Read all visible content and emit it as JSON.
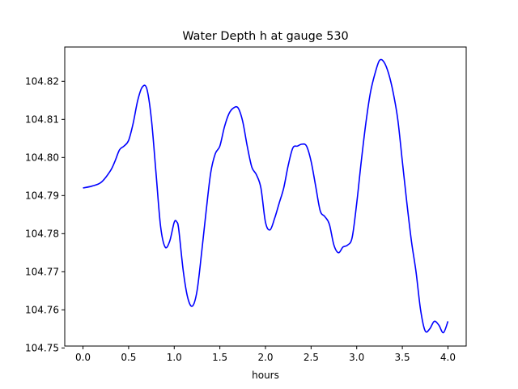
{
  "chart_data": {
    "type": "line",
    "title": "Water Depth h at gauge 530",
    "xlabel": "hours",
    "ylabel": "",
    "xlim": [
      -0.2,
      4.2
    ],
    "ylim": [
      104.7505,
      104.829
    ],
    "grid": false,
    "x_ticks": [
      {
        "value": 0.0,
        "label": "0.0"
      },
      {
        "value": 0.5,
        "label": "0.5"
      },
      {
        "value": 1.0,
        "label": "1.0"
      },
      {
        "value": 1.5,
        "label": "1.5"
      },
      {
        "value": 2.0,
        "label": "2.0"
      },
      {
        "value": 2.5,
        "label": "2.5"
      },
      {
        "value": 3.0,
        "label": "3.0"
      },
      {
        "value": 3.5,
        "label": "3.5"
      },
      {
        "value": 4.0,
        "label": "4.0"
      }
    ],
    "y_ticks": [
      {
        "value": 104.75,
        "label": "104.75"
      },
      {
        "value": 104.76,
        "label": "104.76"
      },
      {
        "value": 104.77,
        "label": "104.77"
      },
      {
        "value": 104.78,
        "label": "104.78"
      },
      {
        "value": 104.79,
        "label": "104.79"
      },
      {
        "value": 104.8,
        "label": "104.80"
      },
      {
        "value": 104.81,
        "label": "104.81"
      },
      {
        "value": 104.82,
        "label": "104.82"
      }
    ],
    "series": [
      {
        "color": "#0000ff",
        "x": [
          0.0,
          0.1,
          0.2,
          0.3,
          0.35,
          0.4,
          0.45,
          0.5,
          0.55,
          0.6,
          0.65,
          0.7,
          0.75,
          0.8,
          0.85,
          0.9,
          0.95,
          1.0,
          1.03,
          1.05,
          1.1,
          1.15,
          1.2,
          1.25,
          1.3,
          1.35,
          1.4,
          1.45,
          1.5,
          1.55,
          1.6,
          1.65,
          1.7,
          1.75,
          1.8,
          1.85,
          1.9,
          1.95,
          2.0,
          2.05,
          2.1,
          2.15,
          2.2,
          2.25,
          2.3,
          2.35,
          2.4,
          2.45,
          2.5,
          2.55,
          2.6,
          2.65,
          2.7,
          2.75,
          2.8,
          2.85,
          2.9,
          2.95,
          3.0,
          3.05,
          3.1,
          3.15,
          3.2,
          3.25,
          3.3,
          3.35,
          3.4,
          3.45,
          3.5,
          3.55,
          3.6,
          3.65,
          3.7,
          3.75,
          3.8,
          3.85,
          3.9,
          3.95,
          4.0
        ],
        "y": [
          104.792,
          104.7925,
          104.7935,
          104.7965,
          104.799,
          104.802,
          104.803,
          104.8045,
          104.809,
          104.815,
          104.8185,
          104.818,
          104.81,
          104.796,
          104.782,
          104.7765,
          104.778,
          104.783,
          104.783,
          104.781,
          104.77,
          104.763,
          104.761,
          104.765,
          104.775,
          104.786,
          104.796,
          104.801,
          104.803,
          104.808,
          104.8115,
          104.813,
          104.813,
          104.8095,
          104.803,
          104.7975,
          104.7955,
          104.792,
          104.783,
          104.781,
          104.784,
          104.788,
          104.792,
          104.798,
          104.8025,
          104.803,
          104.8035,
          104.803,
          104.799,
          104.7925,
          104.786,
          104.7845,
          104.7825,
          104.777,
          104.775,
          104.7765,
          104.777,
          104.779,
          104.788,
          104.799,
          104.809,
          104.817,
          104.822,
          104.8255,
          104.825,
          104.822,
          104.817,
          104.81,
          104.799,
          104.788,
          104.778,
          104.77,
          104.76,
          104.7545,
          104.755,
          104.757,
          104.756,
          104.754,
          104.757
        ]
      }
    ]
  }
}
